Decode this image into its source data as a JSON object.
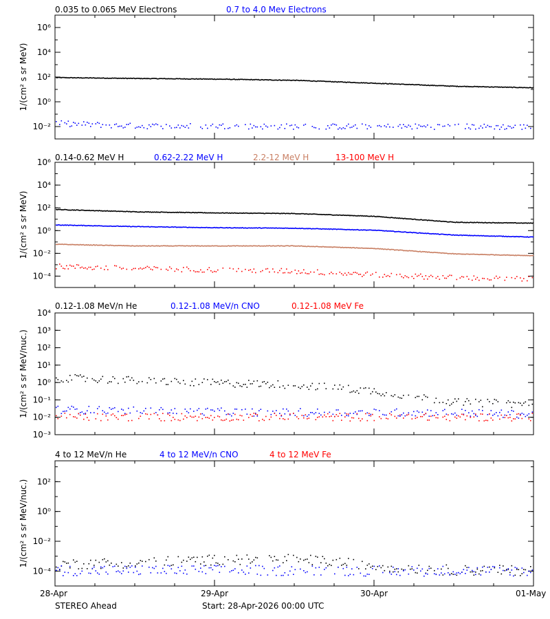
{
  "footer": {
    "left": "STEREO Ahead",
    "center": "Start: 28-Apr-2026 00:00 UTC"
  },
  "x_axis": {
    "type": "date",
    "range": [
      "2026-04-28",
      "2026-05-01"
    ],
    "ticks": [
      {
        "date": "2026-04-28",
        "label": "28-Apr"
      },
      {
        "date": "2026-04-29",
        "label": "29-Apr"
      },
      {
        "date": "2026-04-30",
        "label": "30-Apr"
      },
      {
        "date": "2026-05-01",
        "label": "01-May"
      }
    ],
    "minor_ticks_per_day": 4
  },
  "chart_data": [
    {
      "type": "scatter",
      "scale": "log",
      "ylabel": "1/(cm² s sr MeV)",
      "ylim_exp": [
        -3.0,
        7.0
      ],
      "yticks": [
        {
          "exp": -2,
          "label": "10⁻²"
        },
        {
          "exp": 0,
          "label": "10⁰"
        },
        {
          "exp": 2,
          "label": "10²"
        },
        {
          "exp": 4,
          "label": "10⁴"
        },
        {
          "exp": 6,
          "label": "10⁶"
        }
      ],
      "series": [
        {
          "name": "0.035 to 0.065 MeV Electrons",
          "color": "#000000",
          "x": [
            "2026-04-28T00:00",
            "2026-04-28T12:00",
            "2026-04-29T00:00",
            "2026-04-29T12:00",
            "2026-04-30T00:00",
            "2026-04-30T12:00",
            "2026-05-01T00:00"
          ],
          "values": [
            100,
            85,
            75,
            60,
            35,
            20,
            15
          ]
        },
        {
          "name": "0.7 to 4.0 Mev Electrons",
          "color": "#0000ff",
          "x": [
            "2026-04-28T00:00",
            "2026-04-28T12:00",
            "2026-04-29T00:00",
            "2026-04-29T12:00",
            "2026-04-30T00:00",
            "2026-04-30T12:00",
            "2026-05-01T00:00"
          ],
          "values": [
            0.02,
            0.012,
            0.012,
            0.011,
            0.011,
            0.011,
            0.01
          ]
        }
      ]
    },
    {
      "type": "scatter",
      "scale": "log",
      "ylabel": "1/(cm² s sr MeV)",
      "ylim_exp": [
        -5.0,
        6.0
      ],
      "yticks": [
        {
          "exp": -4,
          "label": "10⁻⁴"
        },
        {
          "exp": -2,
          "label": "10⁻²"
        },
        {
          "exp": 0,
          "label": "10⁰"
        },
        {
          "exp": 2,
          "label": "10²"
        },
        {
          "exp": 4,
          "label": "10⁴"
        },
        {
          "exp": 6,
          "label": "10⁶"
        }
      ],
      "series": [
        {
          "name": "0.14-0.62 MeV H",
          "color": "#000000",
          "x": [
            "2026-04-28T00:00",
            "2026-04-28T12:00",
            "2026-04-29T00:00",
            "2026-04-29T12:00",
            "2026-04-30T00:00",
            "2026-04-30T12:00",
            "2026-05-01T00:00"
          ],
          "values": [
            80,
            50,
            40,
            35,
            20,
            6,
            5
          ]
        },
        {
          "name": "0.62-2.22 MeV H",
          "color": "#0000ff",
          "x": [
            "2026-04-28T00:00",
            "2026-04-28T12:00",
            "2026-04-29T00:00",
            "2026-04-29T12:00",
            "2026-04-30T00:00",
            "2026-04-30T12:00",
            "2026-05-01T00:00"
          ],
          "values": [
            3.5,
            2.5,
            2.0,
            1.8,
            1.2,
            0.45,
            0.3
          ]
        },
        {
          "name": "2.2-12 MeV H",
          "color": "#c87e62",
          "x": [
            "2026-04-28T00:00",
            "2026-04-28T12:00",
            "2026-04-29T00:00",
            "2026-04-29T12:00",
            "2026-04-30T00:00",
            "2026-04-30T12:00",
            "2026-05-01T00:00"
          ],
          "values": [
            0.07,
            0.05,
            0.05,
            0.05,
            0.03,
            0.01,
            0.007
          ]
        },
        {
          "name": "13-100 MeV H",
          "color": "#ff0000",
          "x": [
            "2026-04-28T00:00",
            "2026-04-28T12:00",
            "2026-04-29T00:00",
            "2026-04-29T12:00",
            "2026-04-30T00:00",
            "2026-04-30T12:00",
            "2026-05-01T00:00"
          ],
          "values": [
            0.0008,
            0.0005,
            0.0004,
            0.0003,
            0.00015,
            8e-05,
            6e-05
          ]
        }
      ]
    },
    {
      "type": "scatter",
      "scale": "log",
      "ylabel": "1/(cm² s sr MeV/nuc.)",
      "ylim_exp": [
        -3.0,
        4.0
      ],
      "yticks": [
        {
          "exp": -3,
          "label": "10⁻³"
        },
        {
          "exp": -2,
          "label": "10⁻²"
        },
        {
          "exp": -1,
          "label": "10⁻¹"
        },
        {
          "exp": 0,
          "label": "10⁰"
        },
        {
          "exp": 1,
          "label": "10¹"
        },
        {
          "exp": 2,
          "label": "10²"
        },
        {
          "exp": 3,
          "label": "10³"
        },
        {
          "exp": 4,
          "label": "10⁴"
        }
      ],
      "series": [
        {
          "name": "0.12-1.08 MeV/n He",
          "color": "#000000",
          "x": [
            "2026-04-28T00:00",
            "2026-04-28T12:00",
            "2026-04-29T00:00",
            "2026-04-29T12:00",
            "2026-04-30T00:00",
            "2026-04-30T12:00",
            "2026-05-01T00:00"
          ],
          "values": [
            2.0,
            1.4,
            1.0,
            0.8,
            0.35,
            0.08,
            0.06
          ]
        },
        {
          "name": "0.12-1.08 MeV/n CNO",
          "color": "#0000ff",
          "x": [
            "2026-04-28T00:00",
            "2026-04-28T12:00",
            "2026-04-29T00:00",
            "2026-04-29T12:00",
            "2026-04-30T00:00",
            "2026-04-30T12:00",
            "2026-05-01T00:00"
          ],
          "values": [
            0.03,
            0.025,
            0.022,
            0.02,
            0.02,
            0.02,
            0.015
          ]
        },
        {
          "name": "0.12-1.08 MeV Fe",
          "color": "#ff0000",
          "x": [
            "2026-04-28T00:00",
            "2026-04-28T12:00",
            "2026-04-29T00:00",
            "2026-04-29T12:00",
            "2026-04-30T00:00",
            "2026-04-30T12:00",
            "2026-05-01T00:00"
          ],
          "values": [
            0.011,
            0.011,
            0.011,
            0.011,
            0.011,
            0.011,
            0.011
          ]
        }
      ]
    },
    {
      "type": "scatter",
      "scale": "log",
      "ylabel": "1/(cm² s sr MeV/nuc.)",
      "ylim_exp": [
        -5.0,
        3.4
      ],
      "yticks": [
        {
          "exp": -4,
          "label": "10⁻⁴"
        },
        {
          "exp": -2,
          "label": "10⁻²"
        },
        {
          "exp": 0,
          "label": "10⁰"
        },
        {
          "exp": 2,
          "label": "10²"
        }
      ],
      "series": [
        {
          "name": "4 to 12 MeV/n He",
          "color": "#000000",
          "x": [
            "2026-04-28T00:00",
            "2026-04-28T12:00",
            "2026-04-29T00:00",
            "2026-04-29T12:00",
            "2026-04-30T00:00",
            "2026-04-30T12:00",
            "2026-05-01T00:00"
          ],
          "values": [
            0.0003,
            0.0004,
            0.0006,
            0.0007,
            0.00025,
            0.00012,
            0.00012
          ]
        },
        {
          "name": "4 to 12 MeV/n CNO",
          "color": "#0000ff",
          "x": [
            "2026-04-28T00:00",
            "2026-04-28T12:00",
            "2026-04-29T00:00",
            "2026-04-29T12:00",
            "2026-04-30T00:00",
            "2026-04-30T12:00",
            "2026-05-01T00:00"
          ],
          "values": [
            0.00012,
            0.00012,
            0.00012,
            0.00012,
            0.00011,
            0.00011,
            0.00011
          ]
        },
        {
          "name": "4 to 12 MeV Fe",
          "color": "#ff0000",
          "x": [],
          "values": []
        }
      ]
    }
  ]
}
